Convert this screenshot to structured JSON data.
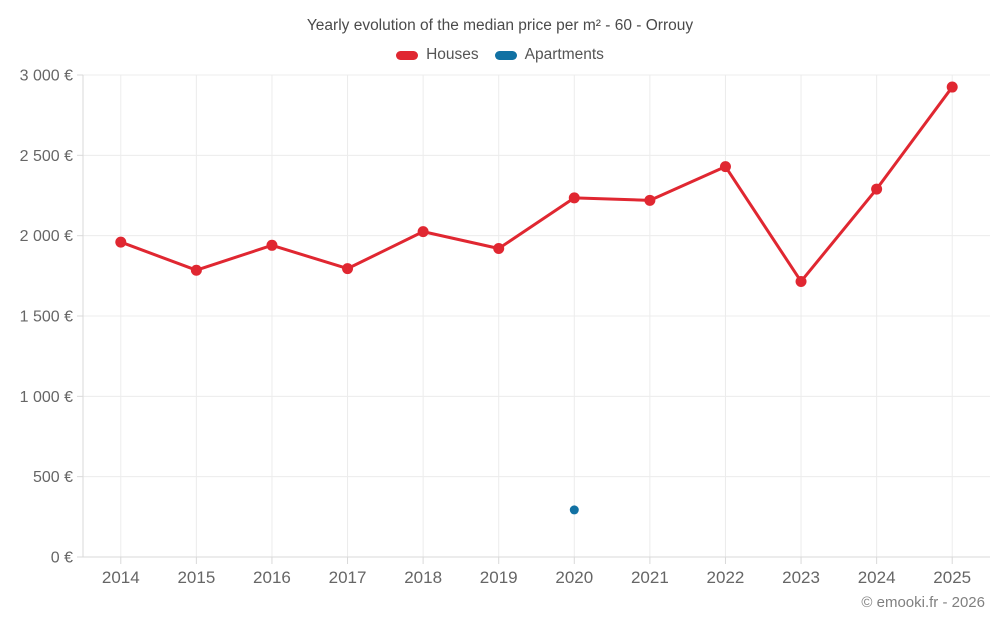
{
  "chart": {
    "title": "Yearly evolution of the median price per m² - 60 - Orrouy",
    "footer": "© emooki.fr - 2026"
  },
  "legend": {
    "items": [
      {
        "label": "Houses",
        "color": "#e02731"
      },
      {
        "label": "Apartments",
        "color": "#1171a3"
      }
    ]
  },
  "chart_data": {
    "type": "line",
    "title": "Yearly evolution of the median price per m² - 60 - Orrouy",
    "categories": [
      "2014",
      "2015",
      "2016",
      "2017",
      "2018",
      "2019",
      "2020",
      "2021",
      "2022",
      "2023",
      "2024",
      "2025"
    ],
    "series": [
      {
        "name": "Houses",
        "color": "#e02731",
        "style": "line+points",
        "values": [
          1960,
          1785,
          1940,
          1795,
          2025,
          1920,
          2235,
          2220,
          2430,
          1715,
          2290,
          2925
        ]
      },
      {
        "name": "Apartments",
        "color": "#1171a3",
        "style": "points",
        "values": [
          null,
          null,
          null,
          null,
          null,
          null,
          293,
          null,
          null,
          null,
          null,
          null
        ]
      }
    ],
    "ylim": [
      0,
      3000
    ],
    "ytick_step": 500,
    "yticks": [
      {
        "value": 0,
        "label": "0 €"
      },
      {
        "value": 500,
        "label": "500 €"
      },
      {
        "value": 1000,
        "label": "1 000 €"
      },
      {
        "value": 1500,
        "label": "1 500 €"
      },
      {
        "value": 2000,
        "label": "2 000 €"
      },
      {
        "value": 2500,
        "label": "2 500 €"
      },
      {
        "value": 3000,
        "label": "3 000 €"
      }
    ],
    "grid": true,
    "legend_position": "top"
  },
  "colors": {
    "houses": "#e02731",
    "apartments": "#1171a3",
    "grid_line": "#ececec",
    "axis_line": "#d9d9d9",
    "axis_text": "#666666",
    "title_text": "#4a4a4a",
    "legend_text": "#555555",
    "footer_text": "#808080"
  }
}
